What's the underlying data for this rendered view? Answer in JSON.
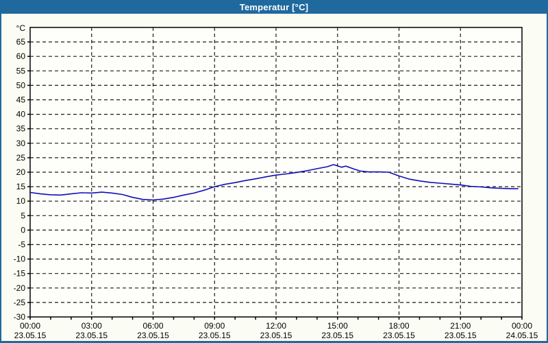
{
  "window": {
    "title": "Temperatur [°C]"
  },
  "colors": {
    "titlebar": "#1f699e",
    "panel_bg": "#fbfcf3",
    "plot_bg": "#fefefa",
    "frame": "#000000",
    "grid": "#1a1a1a",
    "line": "#0e0eb8",
    "title_text": "#ffffff",
    "label_text": "#000000"
  },
  "chart_data": {
    "type": "line",
    "title": "Temperatur [°C]",
    "ylabel": "°C",
    "y_axis_unit": "°C",
    "ylim": [
      -30,
      70
    ],
    "xlim_hours": [
      0,
      24
    ],
    "grid": "dashed",
    "legend_position": "none",
    "y_ticks": [
      -30,
      -25,
      -20,
      -15,
      -10,
      -5,
      0,
      5,
      10,
      15,
      20,
      25,
      30,
      35,
      40,
      45,
      50,
      55,
      60,
      65
    ],
    "y_gridlines": [
      -25,
      -20,
      -15,
      -10,
      -5,
      0,
      5,
      10,
      15,
      20,
      25,
      30,
      35,
      40,
      45,
      50,
      55,
      60,
      65
    ],
    "x_gridline_hours": [
      3,
      6,
      9,
      12,
      15,
      18,
      21
    ],
    "x_minor_tick_every_hours": 1,
    "x_ticks": [
      {
        "hour": 0,
        "time": "00:00",
        "date": "23.05.15"
      },
      {
        "hour": 3,
        "time": "03:00",
        "date": "23.05.15"
      },
      {
        "hour": 6,
        "time": "06:00",
        "date": "23.05.15"
      },
      {
        "hour": 9,
        "time": "09:00",
        "date": "23.05.15"
      },
      {
        "hour": 12,
        "time": "12:00",
        "date": "23.05.15"
      },
      {
        "hour": 15,
        "time": "15:00",
        "date": "23.05.15"
      },
      {
        "hour": 18,
        "time": "18:00",
        "date": "23.05.15"
      },
      {
        "hour": 21,
        "time": "21:00",
        "date": "23.05.15"
      },
      {
        "hour": 24,
        "time": "00:00",
        "date": "24.05.15"
      }
    ],
    "series": [
      {
        "name": "Temperatur",
        "color": "#0e0eb8",
        "points": [
          [
            0.0,
            13.0
          ],
          [
            0.5,
            12.5
          ],
          [
            1.0,
            12.2
          ],
          [
            1.5,
            12.1
          ],
          [
            2.0,
            12.5
          ],
          [
            2.5,
            12.9
          ],
          [
            3.0,
            12.8
          ],
          [
            3.5,
            13.1
          ],
          [
            4.0,
            12.8
          ],
          [
            4.5,
            12.3
          ],
          [
            5.0,
            11.3
          ],
          [
            5.5,
            10.6
          ],
          [
            6.0,
            10.4
          ],
          [
            6.5,
            10.7
          ],
          [
            7.0,
            11.3
          ],
          [
            7.5,
            12.1
          ],
          [
            8.0,
            12.8
          ],
          [
            8.5,
            13.8
          ],
          [
            9.0,
            15.0
          ],
          [
            9.5,
            15.8
          ],
          [
            10.0,
            16.4
          ],
          [
            10.5,
            17.1
          ],
          [
            11.0,
            17.7
          ],
          [
            11.5,
            18.4
          ],
          [
            12.0,
            19.0
          ],
          [
            12.5,
            19.4
          ],
          [
            13.0,
            19.9
          ],
          [
            13.5,
            20.5
          ],
          [
            14.0,
            21.2
          ],
          [
            14.5,
            21.9
          ],
          [
            14.8,
            22.6
          ],
          [
            15.0,
            22.2
          ],
          [
            15.2,
            21.7
          ],
          [
            15.4,
            22.1
          ],
          [
            15.8,
            21.1
          ],
          [
            16.1,
            20.4
          ],
          [
            16.5,
            20.1
          ],
          [
            17.0,
            20.1
          ],
          [
            17.5,
            20.0
          ],
          [
            18.0,
            18.7
          ],
          [
            18.5,
            17.6
          ],
          [
            19.0,
            17.0
          ],
          [
            19.5,
            16.5
          ],
          [
            20.0,
            16.2
          ],
          [
            20.5,
            15.9
          ],
          [
            21.0,
            15.6
          ],
          [
            21.5,
            15.1
          ],
          [
            22.0,
            14.9
          ],
          [
            22.5,
            14.6
          ],
          [
            23.0,
            14.4
          ],
          [
            23.5,
            14.3
          ],
          [
            23.8,
            14.3
          ]
        ]
      }
    ]
  }
}
